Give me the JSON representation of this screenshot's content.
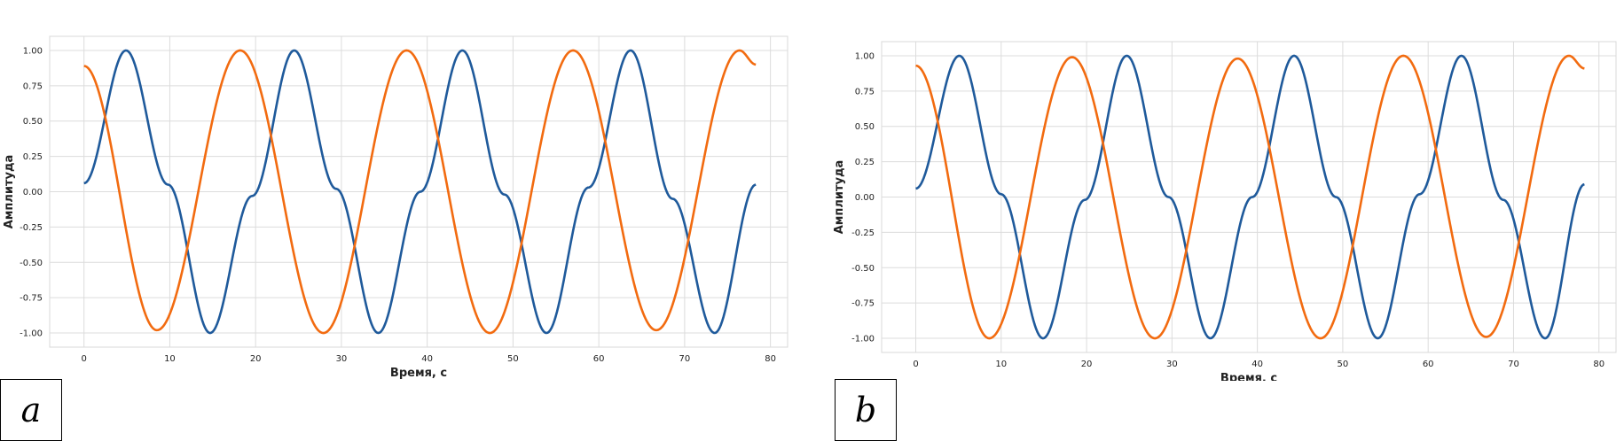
{
  "chart_data": [
    {
      "type": "line",
      "panel_label": "a",
      "xlabel": "Время, с",
      "ylabel": "Амплитуда",
      "xlim": [
        -4,
        82
      ],
      "ylim": [
        -1.1,
        1.1
      ],
      "xticks": [
        0,
        10,
        20,
        30,
        40,
        50,
        60,
        70,
        80
      ],
      "yticks": [
        -1.0,
        -0.75,
        -0.5,
        -0.25,
        0.0,
        0.25,
        0.5,
        0.75,
        1.0
      ],
      "ytick_labels": [
        "-1.00",
        "-0.75",
        "-0.50",
        "-0.25",
        "0.00",
        "0.25",
        "0.50",
        "0.75",
        "1.00"
      ],
      "grid": true,
      "x_range": [
        0,
        78.3
      ],
      "series": [
        {
          "color": "#1f5a9b",
          "x": [
            0,
            4.9,
            9.8,
            14.7,
            19.6,
            24.5,
            29.4,
            34.3,
            39.2,
            44.1,
            49.0,
            53.9,
            58.8,
            63.7,
            68.6,
            73.5,
            78.3
          ],
          "y": [
            0.06,
            1.0,
            0.05,
            -1.0,
            -0.03,
            1.0,
            0.02,
            -1.0,
            0.0,
            1.0,
            -0.02,
            -1.0,
            0.03,
            1.0,
            -0.05,
            -1.0,
            0.05
          ]
        },
        {
          "color": "#f26b10",
          "x": [
            0,
            8.5,
            18.2,
            27.9,
            37.6,
            47.3,
            57.0,
            66.7,
            76.4,
            78.3
          ],
          "y": [
            0.89,
            -0.98,
            1.0,
            -1.0,
            1.0,
            -1.0,
            1.0,
            -0.98,
            1.0,
            0.9
          ]
        }
      ]
    },
    {
      "type": "line",
      "panel_label": "b",
      "xlabel": "Время, с",
      "ylabel": "Амплитуда",
      "xlim": [
        -4,
        82
      ],
      "ylim": [
        -1.1,
        1.1
      ],
      "xticks": [
        0,
        10,
        20,
        30,
        40,
        50,
        60,
        70,
        80
      ],
      "yticks": [
        -1.0,
        -0.75,
        -0.5,
        -0.25,
        0.0,
        0.25,
        0.5,
        0.75,
        1.0
      ],
      "ytick_labels": [
        "-1.00",
        "-0.75",
        "-0.50",
        "-0.25",
        "0.00",
        "0.25",
        "0.50",
        "0.75",
        "1.00"
      ],
      "grid": true,
      "x_range": [
        0,
        78.3
      ],
      "series": [
        {
          "color": "#1f5a9b",
          "x": [
            0,
            5.1,
            10.0,
            14.9,
            19.8,
            24.7,
            29.6,
            34.5,
            39.4,
            44.3,
            49.2,
            54.1,
            59.0,
            63.9,
            68.8,
            73.7,
            78.3
          ],
          "y": [
            0.06,
            1.0,
            0.02,
            -1.0,
            -0.02,
            1.0,
            0.0,
            -1.0,
            0.0,
            1.0,
            0.0,
            -1.0,
            0.02,
            1.0,
            -0.02,
            -1.0,
            0.09
          ]
        },
        {
          "color": "#f26b10",
          "x": [
            0,
            8.6,
            18.3,
            28.0,
            37.7,
            47.4,
            57.1,
            66.8,
            76.5,
            78.3
          ],
          "y": [
            0.93,
            -1.0,
            0.99,
            -1.0,
            0.98,
            -1.0,
            1.0,
            -0.99,
            1.0,
            0.91
          ]
        }
      ]
    }
  ]
}
